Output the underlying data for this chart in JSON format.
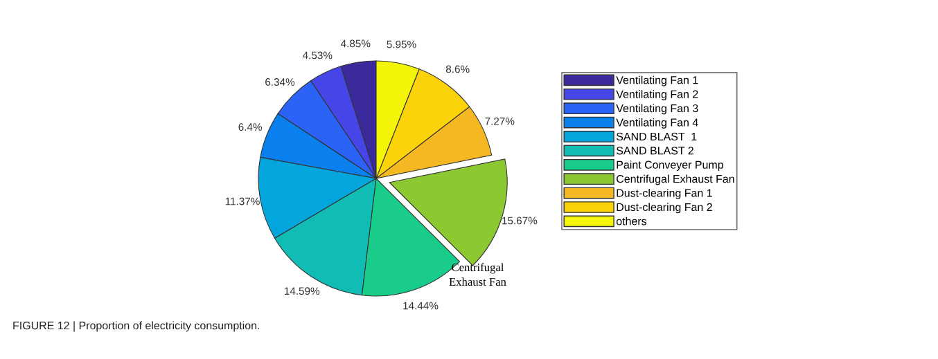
{
  "chart_data": {
    "type": "pie",
    "categories": [
      "Ventilating Fan 1",
      "Ventilating Fan 2",
      "Ventilating Fan 3",
      "Ventilating Fan 4",
      "SAND BLAST  1",
      "SAND BLAST 2",
      "Paint Conveyer Pump",
      "Centrifugal Exhaust Fan",
      "Dust-clearing Fan 1",
      "Dust-clearing Fan 2",
      "others"
    ],
    "values": [
      4.85,
      4.53,
      6.34,
      6.4,
      11.37,
      14.59,
      14.44,
      15.67,
      7.27,
      8.6,
      5.95
    ],
    "value_labels": [
      "4.85%",
      "4.53%",
      "6.34%",
      "6.4%",
      "11.37%",
      "14.59%",
      "14.44%",
      "15.67%",
      "7.27%",
      "8.6%",
      "5.95%"
    ],
    "colors": [
      "#3b2a9b",
      "#4646e8",
      "#2a63f5",
      "#0a80ee",
      "#03a5dd",
      "#11bcb4",
      "#19cc8a",
      "#8cc832",
      "#f5b822",
      "#fcd20a",
      "#f5f50a"
    ],
    "legend": "right",
    "annotations": [
      {
        "text": "Centrifugal\nExhaust Fan",
        "x": "Centrifugal Exhaust Fan"
      },
      "FIGURE 12 | Proportion of electricity consumption."
    ]
  }
}
